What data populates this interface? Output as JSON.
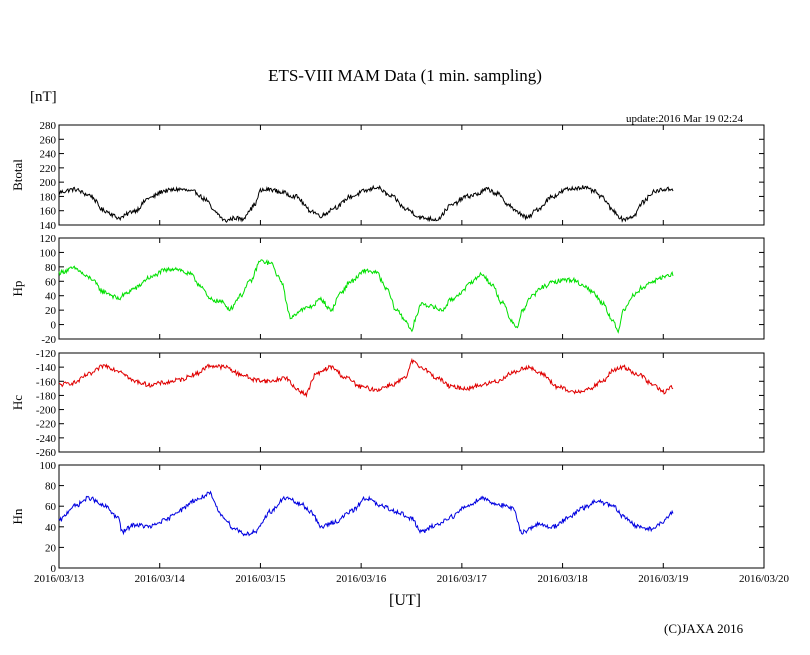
{
  "figure": {
    "title": "ETS-VIII MAM Data (1 min. sampling)",
    "unit_label": "[nT]",
    "update": "update:2016 Mar 19 02:24",
    "x_unit_label": "[UT]",
    "copyright": "(C)JAXA 2016"
  },
  "chart_data": {
    "type": "line",
    "title": "ETS-VIII MAM Data (1 min. sampling)",
    "xlabel": "[UT]",
    "ylabel": "[nT]",
    "x_axis": {
      "type": "time",
      "start": "2016/03/13",
      "end": "2016/03/20",
      "ticks": [
        "2016/03/13",
        "2016/03/14",
        "2016/03/15",
        "2016/03/16",
        "2016/03/17",
        "2016/03/18",
        "2016/03/19",
        "2016/03/20"
      ],
      "x_unit": "days since 2016/03/13 00:00 UT",
      "data_end": 6.1
    },
    "series": [
      {
        "name": "Btotal",
        "color": "#000000",
        "ylim": [
          140,
          280
        ],
        "yticks": [
          140,
          160,
          180,
          200,
          220,
          240,
          260,
          280
        ],
        "x": [
          0,
          0.15,
          0.3,
          0.45,
          0.6,
          0.75,
          0.9,
          1.05,
          1.2,
          1.35,
          1.45,
          1.55,
          1.65,
          1.75,
          1.82,
          1.9,
          1.95,
          2.0,
          2.1,
          2.2,
          2.35,
          2.5,
          2.6,
          2.75,
          2.9,
          3.05,
          3.15,
          3.3,
          3.45,
          3.6,
          3.75,
          3.9,
          4.05,
          4.15,
          4.25,
          4.35,
          4.45,
          4.55,
          4.65,
          4.75,
          4.9,
          5.05,
          5.2,
          5.3,
          5.4,
          5.5,
          5.6,
          5.7,
          5.8,
          5.9,
          6.0,
          6.1
        ],
        "y": [
          186,
          190,
          182,
          160,
          150,
          160,
          178,
          188,
          190,
          186,
          176,
          158,
          146,
          150,
          148,
          162,
          170,
          188,
          190,
          186,
          180,
          160,
          153,
          165,
          180,
          188,
          193,
          180,
          162,
          150,
          148,
          168,
          180,
          183,
          190,
          184,
          170,
          158,
          150,
          162,
          180,
          190,
          193,
          188,
          178,
          160,
          148,
          152,
          172,
          186,
          190,
          190
        ]
      },
      {
        "name": "Hp",
        "color": "#00e000",
        "ylim": [
          -20,
          120
        ],
        "yticks": [
          -20,
          0,
          20,
          40,
          60,
          80,
          100,
          120
        ],
        "x": [
          0,
          0.15,
          0.3,
          0.45,
          0.6,
          0.65,
          0.75,
          0.9,
          1.05,
          1.15,
          1.3,
          1.4,
          1.5,
          1.6,
          1.7,
          1.8,
          1.9,
          2.0,
          2.1,
          2.2,
          2.3,
          2.4,
          2.5,
          2.6,
          2.7,
          2.8,
          2.9,
          3.05,
          3.15,
          3.25,
          3.35,
          3.45,
          3.5,
          3.55,
          3.6,
          3.7,
          3.8,
          3.9,
          4.0,
          4.1,
          4.2,
          4.3,
          4.4,
          4.5,
          4.55,
          4.6,
          4.7,
          4.8,
          4.9,
          5.0,
          5.1,
          5.2,
          5.3,
          5.4,
          5.5,
          5.55,
          5.6,
          5.7,
          5.8,
          5.9,
          6.0,
          6.1
        ],
        "y": [
          72,
          78,
          65,
          45,
          36,
          42,
          50,
          65,
          75,
          78,
          70,
          55,
          35,
          32,
          22,
          40,
          60,
          88,
          85,
          62,
          10,
          20,
          25,
          35,
          20,
          45,
          60,
          75,
          72,
          50,
          20,
          5,
          -10,
          12,
          30,
          25,
          20,
          35,
          45,
          60,
          70,
          55,
          30,
          5,
          -5,
          20,
          40,
          52,
          58,
          62,
          62,
          55,
          45,
          30,
          5,
          -10,
          20,
          40,
          52,
          60,
          66,
          70
        ]
      },
      {
        "name": "Hc",
        "color": "#e00000",
        "ylim": [
          -260,
          -120
        ],
        "yticks": [
          -260,
          -240,
          -220,
          -200,
          -180,
          -160,
          -140,
          -120
        ],
        "x": [
          0,
          0.15,
          0.3,
          0.45,
          0.6,
          0.75,
          0.9,
          1.05,
          1.2,
          1.35,
          1.5,
          1.65,
          1.8,
          1.95,
          2.1,
          2.25,
          2.35,
          2.45,
          2.55,
          2.7,
          2.85,
          3.0,
          3.15,
          3.3,
          3.45,
          3.5,
          3.6,
          3.75,
          3.9,
          4.05,
          4.2,
          4.35,
          4.5,
          4.65,
          4.8,
          4.95,
          5.1,
          5.25,
          5.4,
          5.5,
          5.6,
          5.75,
          5.9,
          6.0,
          6.1
        ],
        "y": [
          -165,
          -162,
          -150,
          -138,
          -145,
          -160,
          -165,
          -162,
          -158,
          -150,
          -138,
          -140,
          -150,
          -158,
          -160,
          -155,
          -170,
          -178,
          -150,
          -140,
          -155,
          -168,
          -172,
          -165,
          -155,
          -132,
          -140,
          -155,
          -168,
          -170,
          -165,
          -160,
          -148,
          -140,
          -150,
          -168,
          -175,
          -172,
          -160,
          -145,
          -140,
          -150,
          -165,
          -175,
          -168
        ]
      },
      {
        "name": "Hn",
        "color": "#0000e0",
        "ylim": [
          0,
          100
        ],
        "yticks": [
          0,
          20,
          40,
          60,
          80,
          100
        ],
        "x": [
          0,
          0.15,
          0.3,
          0.45,
          0.6,
          0.62,
          0.75,
          0.9,
          1.05,
          1.2,
          1.35,
          1.5,
          1.55,
          1.6,
          1.75,
          1.85,
          1.95,
          2.1,
          2.25,
          2.4,
          2.5,
          2.6,
          2.75,
          2.9,
          3.05,
          3.2,
          3.35,
          3.5,
          3.6,
          3.75,
          3.9,
          4.05,
          4.2,
          4.35,
          4.5,
          4.6,
          4.75,
          4.9,
          5.05,
          5.2,
          5.35,
          5.5,
          5.6,
          5.75,
          5.9,
          6.0,
          6.1
        ],
        "y": [
          46,
          60,
          68,
          60,
          48,
          35,
          42,
          40,
          46,
          56,
          66,
          72,
          62,
          52,
          38,
          33,
          35,
          55,
          68,
          62,
          55,
          40,
          45,
          55,
          68,
          60,
          55,
          48,
          35,
          42,
          50,
          60,
          68,
          62,
          58,
          35,
          42,
          40,
          48,
          58,
          65,
          60,
          50,
          40,
          38,
          45,
          55
        ]
      }
    ]
  }
}
